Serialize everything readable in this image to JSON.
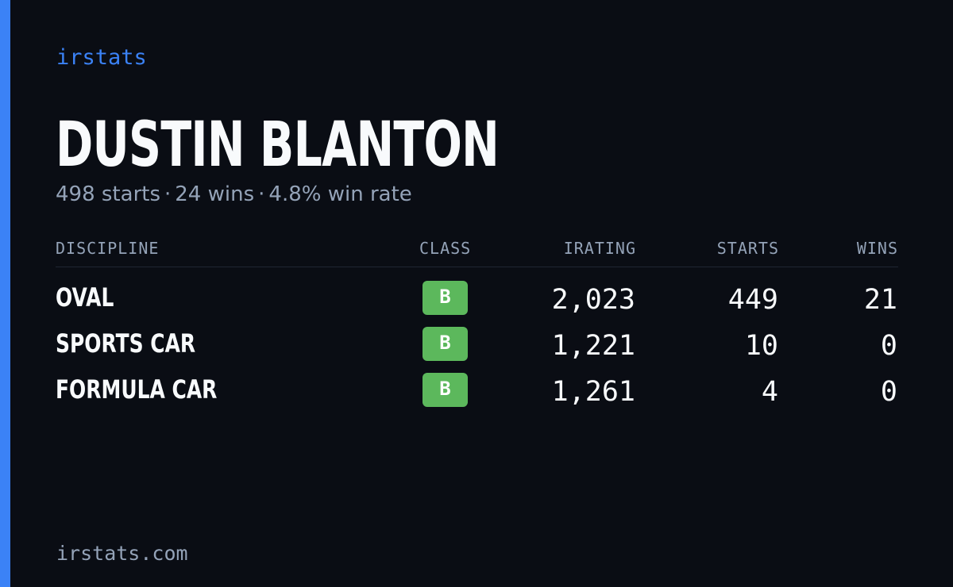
{
  "brand": "irstats",
  "driver": {
    "name": "DUSTIN BLANTON",
    "summary": {
      "starts": "498 starts",
      "wins": "24 wins",
      "win_rate": "4.8% win rate",
      "separator": "·"
    }
  },
  "table": {
    "headers": {
      "discipline": "DISCIPLINE",
      "class": "CLASS",
      "irating": "IRATING",
      "starts": "STARTS",
      "wins": "WINS"
    },
    "rows": [
      {
        "discipline": "OVAL",
        "class": "B",
        "irating": "2,023",
        "starts": "449",
        "wins": "21"
      },
      {
        "discipline": "SPORTS CAR",
        "class": "B",
        "irating": "1,221",
        "starts": "10",
        "wins": "0"
      },
      {
        "discipline": "FORMULA CAR",
        "class": "B",
        "irating": "1,261",
        "starts": "4",
        "wins": "0"
      }
    ]
  },
  "footer": "irstats.com",
  "colors": {
    "background": "#0a0d14",
    "accent": "#3b82f6",
    "class_b": "#5cb85c",
    "text": "#f8fafc",
    "muted": "#94a3b8"
  }
}
